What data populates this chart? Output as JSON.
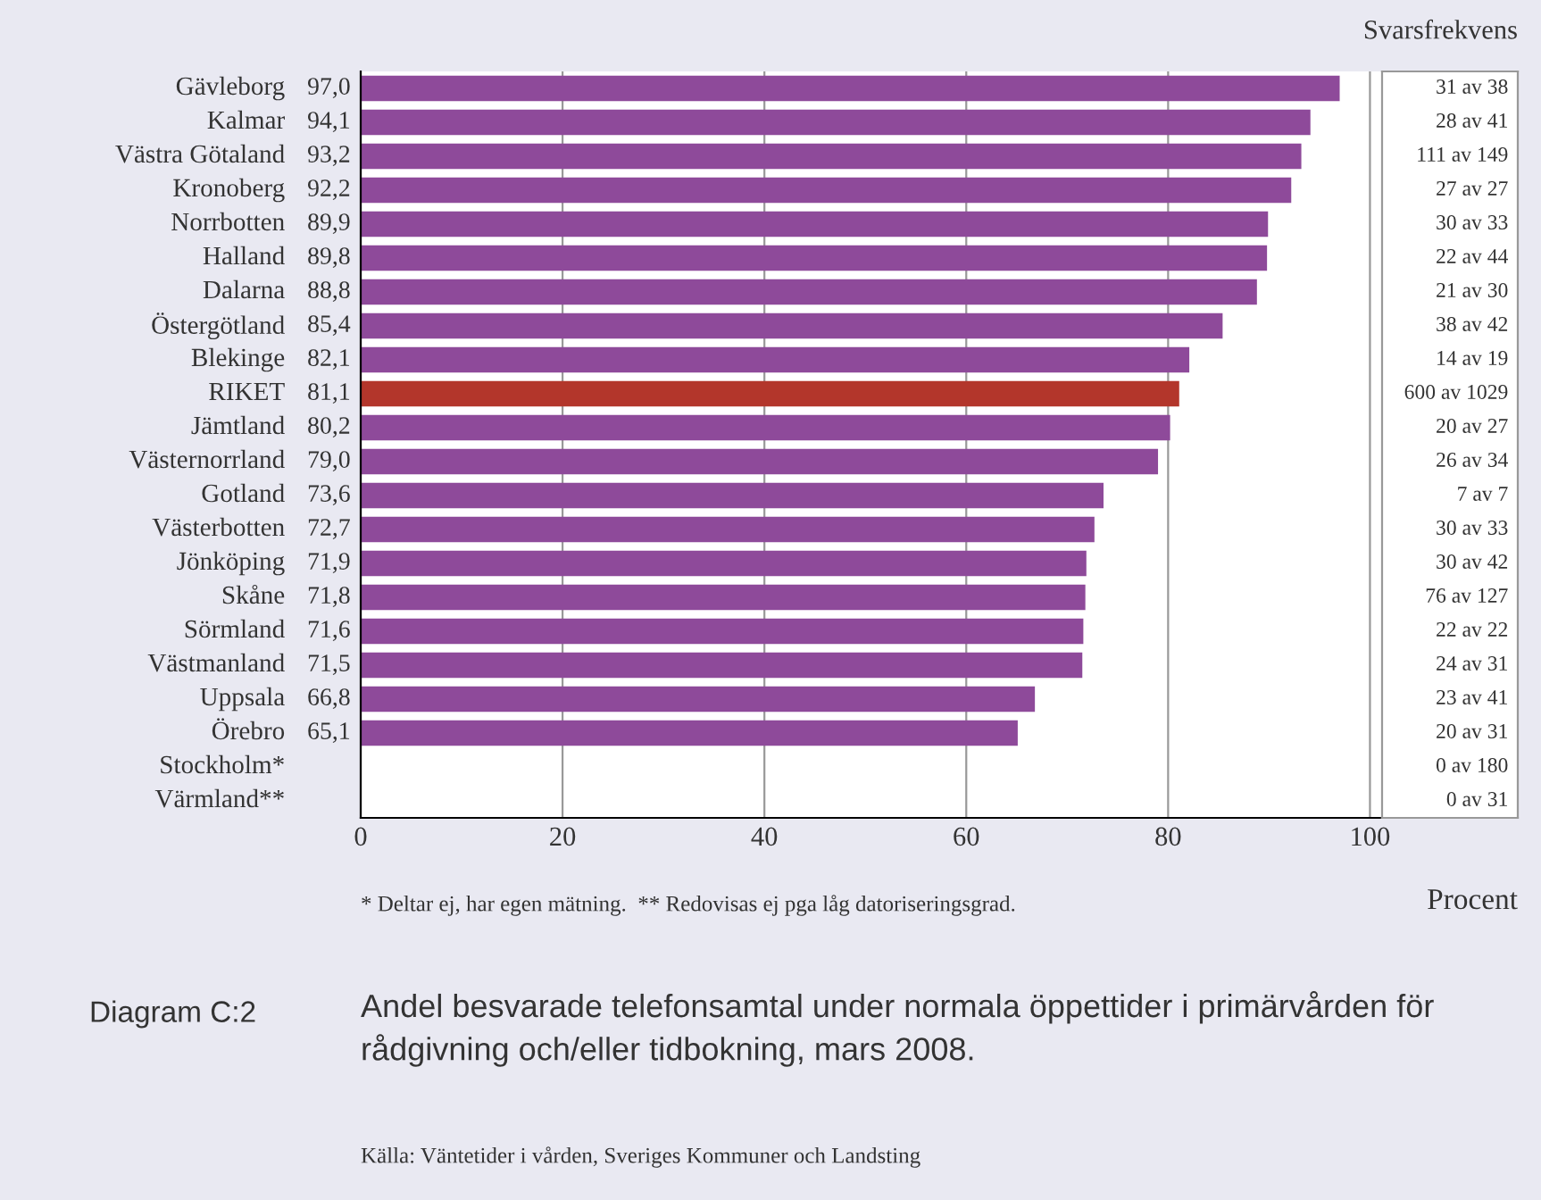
{
  "chart_data": {
    "type": "bar",
    "orientation": "horizontal",
    "title": "Andel besvarade telefonsamtal under normala öppettider i primärvården för rådgivning och/eller tidbokning, mars 2008.",
    "xlabel": "Procent",
    "categories": [
      "Gävleborg",
      "Kalmar",
      "Västra Götaland",
      "Kronoberg",
      "Norrbotten",
      "Halland",
      "Dalarna",
      "Östergötland",
      "Blekinge",
      "RIKET",
      "Jämtland",
      "Västernorrland",
      "Gotland",
      "Västerbotten",
      "Jönköping",
      "Skåne",
      "Sörmland",
      "Västmanland",
      "Uppsala",
      "Örebro",
      "Stockholm*",
      "Värmland**"
    ],
    "values": [
      97.0,
      94.1,
      93.2,
      92.2,
      89.9,
      89.8,
      88.8,
      85.4,
      82.1,
      81.1,
      80.2,
      79.0,
      73.6,
      72.7,
      71.9,
      71.8,
      71.6,
      71.5,
      66.8,
      65.1,
      null,
      null
    ],
    "value_labels": [
      "97,0",
      "94,1",
      "93,2",
      "92,2",
      "89,9",
      "89,8",
      "88,8",
      "85,4",
      "82,1",
      "81,1",
      "80,2",
      "79,0",
      "73,6",
      "72,7",
      "71,9",
      "71,8",
      "71,6",
      "71,5",
      "66,8",
      "65,1",
      null,
      null
    ],
    "colors": [
      "#8e4a9a",
      "#8e4a9a",
      "#8e4a9a",
      "#8e4a9a",
      "#8e4a9a",
      "#8e4a9a",
      "#8e4a9a",
      "#8e4a9a",
      "#8e4a9a",
      "#b3362b",
      "#8e4a9a",
      "#8e4a9a",
      "#8e4a9a",
      "#8e4a9a",
      "#8e4a9a",
      "#8e4a9a",
      "#8e4a9a",
      "#8e4a9a",
      "#8e4a9a",
      "#8e4a9a",
      "#8e4a9a",
      "#8e4a9a"
    ],
    "xlim": [
      0,
      101.2
    ],
    "xticks": [
      0,
      20,
      40,
      60,
      80,
      100
    ],
    "grid": "x",
    "annotations": [
      "Svarsfrekvens",
      "* Deltar ej, har egen mätning.  ** Redovisas ej pga låg datoriseringsgrad.",
      "Diagram C:2",
      "Källa: Väntetider i vården, Sveriges Kommuner och Landsting",
      "31 av 38",
      "28 av 41",
      "111 av 149",
      "27 av 27",
      "30 av 33",
      "22 av 44",
      "21 av 30",
      "38 av 42",
      "14 av 19",
      "600 av 1029",
      "20 av 27",
      "26 av 34",
      "7 av 7",
      "30 av 33",
      "30 av 42",
      "76 av 127",
      "22 av 22",
      "24 av 31",
      "23 av 41",
      "20 av 31",
      "0 av 180",
      "0 av 31"
    ]
  }
}
